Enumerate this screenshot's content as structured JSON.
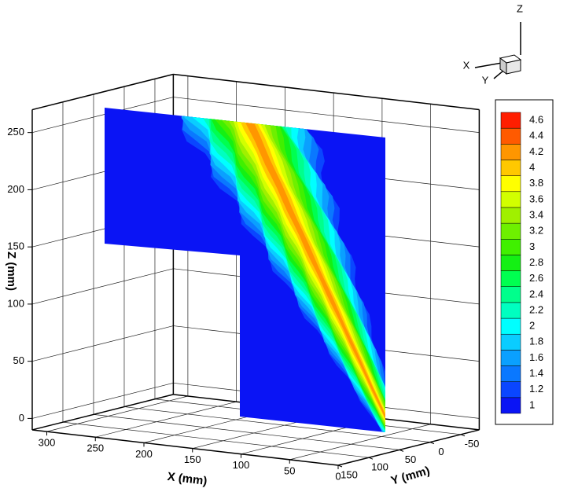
{
  "chart_data": {
    "type": "contour3d",
    "x_label": "X (mm)",
    "y_label": "Y (mm)",
    "z_label": "Z (mm)",
    "xlim": [
      0,
      315
    ],
    "ylim": [
      -80,
      150
    ],
    "zlim": [
      -10,
      270
    ],
    "xticks": [
      300,
      250,
      200,
      150,
      100,
      50,
      0
    ],
    "yticks": [
      150,
      100,
      50,
      0,
      -50
    ],
    "zticks": [
      0,
      50,
      100,
      150,
      200,
      250
    ],
    "grid": true,
    "levels": [
      1,
      1.2,
      1.4,
      1.6,
      1.8,
      2,
      2.2,
      2.4,
      2.6,
      2.8,
      3,
      3.2,
      3.4,
      3.6,
      3.8,
      4,
      4.2,
      4.4,
      4.6
    ],
    "colors": [
      "#0a14f5",
      "#0a46ff",
      "#0a78ff",
      "#0aa0ff",
      "#0acdff",
      "#00ffff",
      "#00ffc0",
      "#00ff8c",
      "#00ff50",
      "#14f014",
      "#40f000",
      "#6ef000",
      "#a0f000",
      "#d2ff00",
      "#ffff00",
      "#ffc800",
      "#ff9600",
      "#ff5a00",
      "#ff1e00"
    ],
    "triad": [
      "X",
      "Y",
      "Z"
    ]
  }
}
